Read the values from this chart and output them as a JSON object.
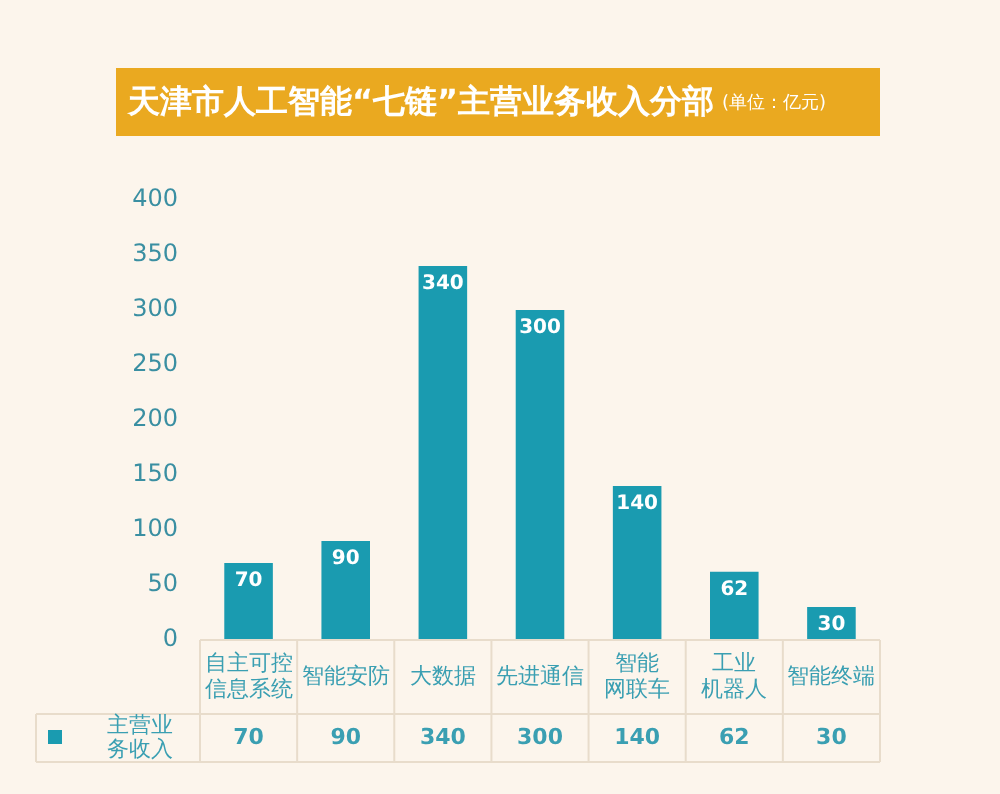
{
  "chart_data": {
    "type": "bar",
    "title": "天津市人工智能“七链”主营业务收入分部",
    "subtitle": "(单位：亿元)",
    "categories": [
      "自主可控信息系统",
      "智能安防",
      "大数据",
      "先进通信",
      "智能网联车",
      "工业机器人",
      "智能终端"
    ],
    "series": [
      {
        "name": "主营业务收入",
        "color": "#1a9bb0",
        "values": [
          70,
          90,
          340,
          300,
          140,
          62,
          30
        ],
        "value_labels": [
          "70",
          "90",
          "340",
          "300",
          "140",
          "62",
          "30"
        ]
      }
    ],
    "ylim": [
      0,
      400
    ],
    "yticks": [
      0,
      50,
      100,
      150,
      200,
      250,
      300,
      350,
      400
    ],
    "grid": false,
    "legend": "bottom",
    "data_labels": true
  }
}
